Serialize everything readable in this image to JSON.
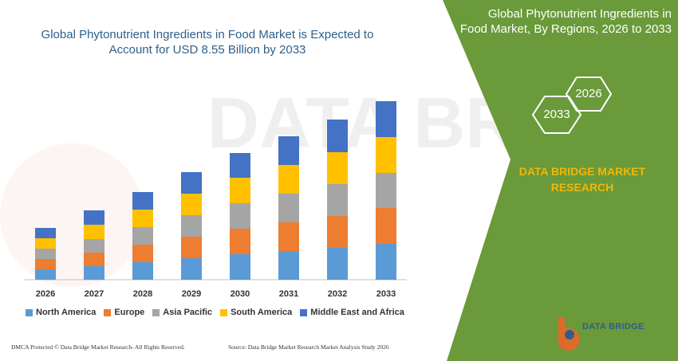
{
  "title_line1": "Global Phytonutrient Ingredients in Food Market is Expected to",
  "title_line2": "Account for USD 8.55 Billion by 2033",
  "right_panel": {
    "title_line1": "Global Phytonutrient Ingredients in",
    "title_line2": "Food Market, By Regions, 2026 to 2033",
    "hex_left": "2033",
    "hex_right": "2026",
    "brand_line1": "DATA BRIDGE MARKET",
    "brand_line2": "RESEARCH",
    "panel_color": "#6a9a3a"
  },
  "logo": {
    "name": "DATA BRIDGE",
    "icon": "data-bridge-logo-icon"
  },
  "footer": {
    "left": "DMCA Protected © Data Bridge Market Research- All Rights Reserved.",
    "right": "Source: Data Bridge Market Research Market Analysis Study 2026"
  },
  "chart_data": {
    "type": "bar",
    "stacked": true,
    "categories": [
      "2026",
      "2027",
      "2028",
      "2029",
      "2030",
      "2031",
      "2032",
      "2033"
    ],
    "series": [
      {
        "name": "North America",
        "color": "#5b9bd5",
        "values": [
          13,
          17,
          22,
          27,
          32,
          36,
          40,
          45
        ]
      },
      {
        "name": "Europe",
        "color": "#ed7d31",
        "values": [
          13,
          17,
          22,
          27,
          32,
          36,
          40,
          45
        ]
      },
      {
        "name": "Asia Pacific",
        "color": "#a5a5a5",
        "values": [
          13,
          17,
          22,
          27,
          32,
          36,
          40,
          44
        ]
      },
      {
        "name": "South America",
        "color": "#ffc000",
        "values": [
          13,
          18,
          22,
          27,
          32,
          36,
          40,
          45
        ]
      },
      {
        "name": "Middle East and Africa",
        "color": "#4472c4",
        "values": [
          13,
          18,
          22,
          27,
          31,
          36,
          41,
          45
        ]
      }
    ],
    "grid": false,
    "legend_position": "bottom"
  }
}
